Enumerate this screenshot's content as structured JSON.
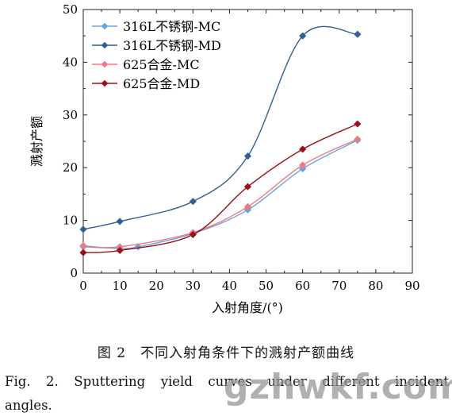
{
  "chart_data": {
    "type": "line",
    "xlabel": "入射角度/(°)",
    "ylabel": "溅射产额",
    "xlim": [
      0,
      90
    ],
    "ylim": [
      0,
      50
    ],
    "xticks": [
      "0",
      "10",
      "20",
      "30",
      "40",
      "50",
      "60",
      "70",
      "80",
      "90"
    ],
    "yticks": [
      "0",
      "10",
      "20",
      "30",
      "40",
      "50"
    ],
    "grid": false,
    "legend_position": "top-left",
    "series": [
      {
        "name": "316L不锈钢-MC",
        "color": "#6aa3d8",
        "marker": "diamond",
        "x": [
          0,
          10,
          15,
          30,
          45,
          60,
          75
        ],
        "y": [
          5.0,
          4.7,
          5.0,
          7.5,
          12.0,
          19.8,
          25.2
        ]
      },
      {
        "name": "316L不锈钢-MD",
        "color": "#2e5f96",
        "marker": "diamond",
        "x": [
          0,
          10,
          30,
          45,
          60,
          75
        ],
        "y": [
          8.3,
          9.8,
          13.6,
          22.2,
          45.0,
          45.3
        ]
      },
      {
        "name": "625合金-MC",
        "color": "#f07a80",
        "marker": "diamond",
        "x": [
          0,
          10,
          30,
          45,
          60,
          75
        ],
        "y": [
          5.2,
          5.0,
          7.7,
          12.6,
          20.5,
          25.4
        ]
      },
      {
        "name": "625合金-MD",
        "color": "#9c1017",
        "marker": "diamond",
        "x": [
          0,
          10,
          30,
          45,
          60,
          75
        ],
        "y": [
          3.9,
          4.3,
          7.3,
          16.4,
          23.5,
          28.3
        ]
      }
    ]
  },
  "caption": {
    "cn": "图 2　不同入射角条件下的溅射产额曲线",
    "en_line1": "Fig. 2. Sputtering yield curves under different incident",
    "en_line2": "angles."
  },
  "watermark": "gzhwkf.com"
}
